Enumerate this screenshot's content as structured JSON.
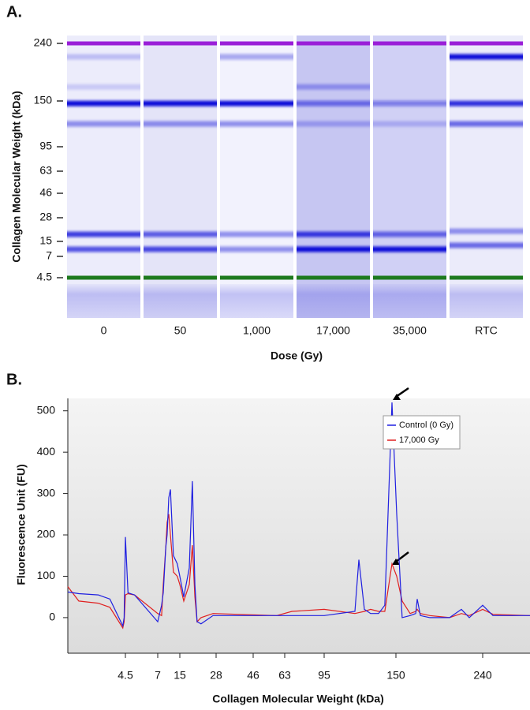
{
  "chart_data": [
    {
      "type": "gel",
      "panel_label": "A.",
      "categories": [
        "0",
        "50",
        "1,000",
        "17,000",
        "35,000",
        "RTC"
      ],
      "xlabel": "Dose (Gy)",
      "ylabel": "Collagen Molecular Weight (kDa)",
      "yticks": [
        240,
        150,
        95,
        63,
        46,
        28,
        15,
        7,
        4.5
      ],
      "band_color": "#1010d8",
      "markers": [
        {
          "kda": 240,
          "color": "#9a1fd8"
        },
        {
          "kda": 4.5,
          "color": "#1e7a1e"
        }
      ],
      "bands": [
        [
          {
            "kda": 219,
            "intensity": 0.2
          },
          {
            "kda": 172,
            "intensity": 0.15
          },
          {
            "kda": 147,
            "intensity": 1
          },
          {
            "kda": 122.5,
            "intensity": 0.45
          },
          {
            "kda": 18.9,
            "intensity": 0.8
          },
          {
            "kda": 10.8,
            "intensity": 0.7
          }
        ],
        [
          {
            "kda": 147,
            "intensity": 1
          },
          {
            "kda": 122.5,
            "intensity": 0.4
          },
          {
            "kda": 18.9,
            "intensity": 0.65
          },
          {
            "kda": 10.8,
            "intensity": 0.75
          }
        ],
        [
          {
            "kda": 219,
            "intensity": 0.35
          },
          {
            "kda": 147,
            "intensity": 1
          },
          {
            "kda": 122.5,
            "intensity": 0.45
          },
          {
            "kda": 18.9,
            "intensity": 0.4
          },
          {
            "kda": 10.8,
            "intensity": 0.45
          }
        ],
        [
          {
            "kda": 172,
            "intensity": 0.3
          },
          {
            "kda": 147,
            "intensity": 0.55
          },
          {
            "kda": 122.5,
            "intensity": 0.25
          },
          {
            "kda": 18.9,
            "intensity": 0.8
          },
          {
            "kda": 10.8,
            "intensity": 1
          }
        ],
        [
          {
            "kda": 147,
            "intensity": 0.45
          },
          {
            "kda": 122.5,
            "intensity": 0.2
          },
          {
            "kda": 18.9,
            "intensity": 0.6
          },
          {
            "kda": 10.8,
            "intensity": 1
          }
        ],
        [
          {
            "kda": 219,
            "intensity": 1
          },
          {
            "kda": 147,
            "intensity": 0.85
          },
          {
            "kda": 122.5,
            "intensity": 0.6
          },
          {
            "kda": 20.6,
            "intensity": 0.4
          },
          {
            "kda": 12.9,
            "intensity": 0.6
          }
        ]
      ]
    },
    {
      "type": "line",
      "panel_label": "B.",
      "xlabel": "Collagen Molecular Weight (kDa)",
      "ylabel": "Fluorescence Unit (FU)",
      "x": [
        0.05,
        0.9,
        2.4,
        3.3,
        4.3,
        4.4,
        4.5,
        4.7,
        5.2,
        7,
        8.4,
        9,
        9.9,
        10.4,
        11,
        11.6,
        12.7,
        14.1,
        15,
        16.4,
        18.4,
        19.5,
        20.4,
        21.2,
        22.6,
        26.9,
        58.7,
        68.8,
        95,
        118.6,
        121.6,
        125.8,
        130.6,
        136.7,
        141.5,
        147,
        150.8,
        156.5,
        164.7,
        170.5,
        172.1,
        175.4,
        185.2,
        205.6,
        217.9,
        226.1,
        240,
        250.6,
        289
      ],
      "series": [
        {
          "name": "Control (0 Gy)",
          "color": "#2020e0",
          "values": [
            62,
            58,
            55,
            45,
            -20,
            0,
            195,
            60,
            55,
            -10,
            30,
            60,
            170,
            200,
            290,
            310,
            150,
            130,
            100,
            50,
            120,
            330,
            80,
            -10,
            -15,
            5,
            5,
            5,
            5,
            15,
            140,
            20,
            10,
            10,
            30,
            520,
            250,
            0,
            5,
            10,
            45,
            5,
            0,
            0,
            20,
            0,
            30,
            5,
            5
          ]
        },
        {
          "name": "17,000 Gy",
          "color": "#e02020",
          "values": [
            75,
            40,
            35,
            25,
            -25,
            -10,
            55,
            58,
            55,
            10,
            5,
            80,
            170,
            230,
            250,
            200,
            110,
            100,
            80,
            40,
            80,
            175,
            50,
            -10,
            0,
            10,
            5,
            15,
            20,
            10,
            12,
            15,
            20,
            15,
            15,
            130,
            100,
            40,
            10,
            15,
            20,
            10,
            5,
            0,
            10,
            5,
            20,
            8,
            5
          ]
        }
      ],
      "xticks": [
        4.5,
        7,
        15,
        28,
        46,
        63,
        95,
        150,
        240
      ],
      "xlim": [
        0.05,
        289
      ],
      "ylim": [
        -86,
        530
      ],
      "yticks": [
        0,
        100,
        200,
        300,
        400,
        500
      ],
      "legend": "upper right"
    }
  ]
}
